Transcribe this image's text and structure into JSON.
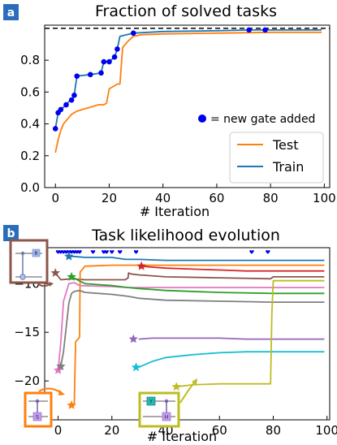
{
  "panel_a": {
    "label": "a",
    "legend_note": "= new gate added",
    "chart_data": {
      "type": "line",
      "title": "Fraction of solved tasks",
      "xlabel": "# Iteration",
      "ylabel": "",
      "xlim": [
        -4,
        102
      ],
      "ylim": [
        0,
        1.02
      ],
      "xticks": [
        0,
        20,
        40,
        60,
        80,
        100
      ],
      "yticks": [
        0.0,
        0.2,
        0.4,
        0.6,
        0.8
      ],
      "ytick_labels": [
        "0.0",
        "0.2",
        "0.4",
        "0.6",
        "0.8"
      ],
      "reference_line": 1.0,
      "legend_position": "lower-right",
      "series": [
        {
          "name": "Test",
          "color": "#ff7f0e",
          "x": [
            0,
            1,
            2,
            3,
            4,
            5,
            6,
            7,
            8,
            10,
            12,
            14,
            16,
            18,
            19,
            20,
            21,
            22,
            23,
            24,
            25,
            27,
            29,
            32,
            40,
            60,
            80,
            99
          ],
          "y": [
            0.22,
            0.3,
            0.36,
            0.4,
            0.42,
            0.44,
            0.46,
            0.47,
            0.48,
            0.49,
            0.5,
            0.51,
            0.52,
            0.52,
            0.53,
            0.62,
            0.63,
            0.64,
            0.65,
            0.65,
            0.88,
            0.92,
            0.95,
            0.96,
            0.965,
            0.97,
            0.975,
            0.975
          ]
        },
        {
          "name": "Train",
          "color": "#1f77b4",
          "x": [
            0,
            1,
            2,
            4,
            5,
            6,
            7,
            8,
            13,
            17,
            18,
            20,
            22,
            23,
            24,
            29,
            40,
            60,
            72,
            78,
            99
          ],
          "y": [
            0.37,
            0.47,
            0.49,
            0.52,
            0.54,
            0.55,
            0.58,
            0.7,
            0.71,
            0.72,
            0.79,
            0.79,
            0.82,
            0.87,
            0.95,
            0.97,
            0.98,
            0.985,
            0.99,
            0.99,
            0.99
          ]
        }
      ],
      "markers": {
        "name": "new gate added",
        "color": "#0000ee",
        "x": [
          0,
          1,
          2,
          4,
          6,
          7,
          8,
          13,
          17,
          18,
          20,
          22,
          23,
          29,
          72,
          78
        ],
        "y": [
          0.37,
          0.47,
          0.49,
          0.52,
          0.55,
          0.58,
          0.7,
          0.71,
          0.72,
          0.79,
          0.79,
          0.82,
          0.87,
          0.97,
          0.99,
          0.99
        ]
      }
    }
  },
  "panel_b": {
    "label": "b",
    "chart_data": {
      "type": "line",
      "title": "Task likelihood evolution",
      "xlabel": "# Iteration",
      "ylabel": "",
      "xlim": [
        -5,
        101
      ],
      "ylim": [
        -24,
        -6.3
      ],
      "xticks": [
        0,
        20,
        40,
        60,
        80,
        100
      ],
      "yticks": [
        -10,
        -15,
        -20
      ],
      "ytick_labels": [
        "−10",
        "−15",
        "−20"
      ],
      "gate_marker_color": "#0000ee",
      "gate_marker_x": [
        0,
        1,
        2,
        3,
        4,
        5,
        6,
        7,
        8,
        13,
        17,
        18,
        20,
        23,
        29,
        72,
        78
      ],
      "gate_marker_y": -6.7,
      "series": [
        {
          "color": "#1f77b4",
          "x": [
            4,
            6,
            10,
            20,
            25,
            30,
            40,
            60,
            80,
            99
          ],
          "y": [
            -7.2,
            -7.2,
            -7.3,
            -7.3,
            -7.5,
            -7.5,
            -7.6,
            -7.6,
            -7.6,
            -7.6
          ]
        },
        {
          "color": "#d62728",
          "x": [
            30,
            31,
            35,
            40,
            50,
            60,
            70,
            80,
            99
          ],
          "y": [
            -8.3,
            -8.2,
            -8.3,
            -8.4,
            -8.5,
            -8.6,
            -8.7,
            -8.7,
            -8.7
          ]
        },
        {
          "color": "#8c564b",
          "x": [
            -1,
            1,
            5,
            10,
            15,
            20,
            25,
            26,
            26.2,
            27,
            30,
            40,
            60,
            79,
            80,
            99
          ],
          "y": [
            -8.9,
            -9.6,
            -9.5,
            -9.6,
            -9.6,
            -9.6,
            -9.6,
            -9.4,
            -8.9,
            -9.0,
            -9.1,
            -9.3,
            -9.4,
            -9.5,
            -9.3,
            -9.3
          ]
        },
        {
          "color": "#ff7f0e",
          "x": [
            5,
            6,
            6.5,
            8,
            8.2,
            10,
            20,
            30,
            40,
            60,
            80,
            99
          ],
          "y": [
            -22.5,
            -22.5,
            -16.0,
            -15.5,
            -8.8,
            -8.2,
            -8.1,
            -8.1,
            -8.1,
            -8.1,
            -8.1,
            -8.1
          ]
        },
        {
          "color": "#e377c2",
          "x": [
            0,
            1,
            2,
            4,
            6,
            8,
            20,
            26,
            30,
            40,
            60,
            80,
            99
          ],
          "y": [
            -18.9,
            -16.0,
            -11.8,
            -10.0,
            -9.9,
            -10.2,
            -10.3,
            -10.4,
            -10.4,
            -10.4,
            -10.4,
            -10.4,
            -10.4
          ]
        },
        {
          "color": "#2ca02c",
          "x": [
            5,
            10,
            20,
            26,
            26.2,
            30,
            40,
            60,
            80,
            99
          ],
          "y": [
            -9.3,
            -10.0,
            -10.2,
            -10.4,
            -10.4,
            -10.5,
            -10.7,
            -10.9,
            -11.0,
            -11.0
          ]
        },
        {
          "color": "#7f7f7f",
          "x": [
            1,
            2,
            3,
            4,
            5,
            6,
            8,
            10,
            20,
            26,
            30,
            40,
            60,
            80,
            99
          ],
          "y": [
            -18.5,
            -17.0,
            -14.5,
            -12.0,
            -11.0,
            -10.8,
            -10.7,
            -10.9,
            -11.1,
            -11.3,
            -11.5,
            -11.7,
            -11.8,
            -11.9,
            -11.9
          ]
        },
        {
          "color": "#9467bd",
          "x": [
            30,
            35,
            40,
            50,
            60,
            70,
            80,
            99
          ],
          "y": [
            -15.7,
            -15.6,
            -15.6,
            -15.6,
            -15.6,
            -15.7,
            -15.7,
            -15.7
          ]
        },
        {
          "color": "#17becf",
          "x": [
            30,
            35,
            40,
            50,
            60,
            70,
            80,
            90,
            99
          ],
          "y": [
            -18.6,
            -18.0,
            -17.6,
            -17.3,
            -17.1,
            -17.0,
            -17.0,
            -17.0,
            -17.0
          ]
        },
        {
          "color": "#bcbd22",
          "x": [
            44,
            50,
            60,
            70,
            79,
            79.5,
            80,
            81,
            99
          ],
          "y": [
            -20.6,
            -20.4,
            -20.3,
            -20.3,
            -20.3,
            -13.0,
            -9.7,
            -9.7,
            -9.7
          ]
        }
      ],
      "stars": [
        {
          "x": 4,
          "y": -7.2,
          "color": "#1f77b4"
        },
        {
          "x": 31,
          "y": -8.2,
          "color": "#d62728"
        },
        {
          "x": -1,
          "y": -8.9,
          "color": "#8c564b"
        },
        {
          "x": 5,
          "y": -9.3,
          "color": "#2ca02c"
        },
        {
          "x": 0,
          "y": -18.9,
          "color": "#e377c2"
        },
        {
          "x": 1,
          "y": -18.5,
          "color": "#7f7f7f"
        },
        {
          "x": 5,
          "y": -22.5,
          "color": "#ff7f0e"
        },
        {
          "x": 28,
          "y": -15.7,
          "color": "#9467bd"
        },
        {
          "x": 29,
          "y": -18.6,
          "color": "#17becf"
        },
        {
          "x": 44,
          "y": -20.6,
          "color": "#bcbd22"
        }
      ]
    },
    "insets": [
      {
        "border": "#8c564b",
        "letters": [
          "R"
        ]
      },
      {
        "border": "#ff7f0e",
        "letters": [
          "S"
        ]
      },
      {
        "border": "#bcbd22",
        "letters": [
          "Y",
          "H"
        ]
      }
    ]
  }
}
